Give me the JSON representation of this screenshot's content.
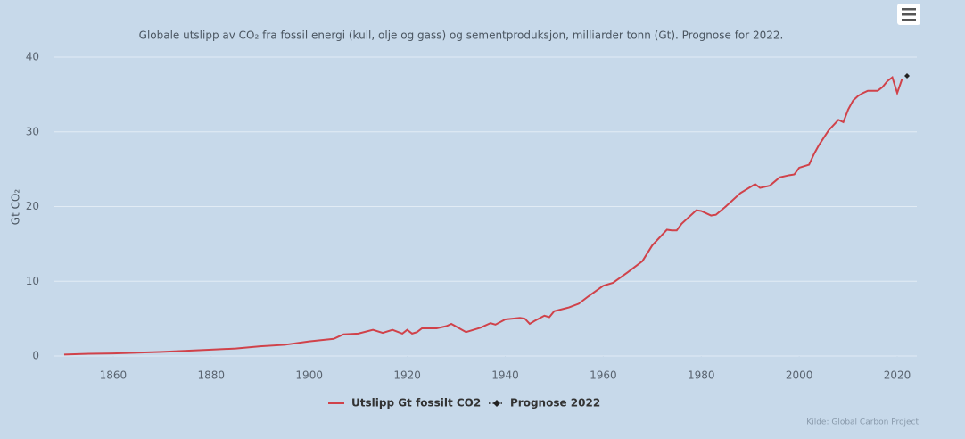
{
  "chart_data": {
    "type": "line",
    "title": "Globale utslipp av CO₂ fra fossil energi (kull, olje og gass) og sementproduksjon, milliarder tonn (Gt). Prognose for 2022.",
    "y_label": "Gt CO₂",
    "source": "Kilde: Global Carbon Project",
    "xlim": [
      1848,
      2024
    ],
    "xticks": [
      1860,
      1880,
      1900,
      1920,
      1940,
      1960,
      1980,
      2000,
      2020
    ],
    "ylim": [
      0,
      40
    ],
    "yticks": [
      0,
      10,
      20,
      30,
      40
    ],
    "grid": true,
    "series": [
      {
        "name": "Utslipp Gt fossilt CO2",
        "color": "#d0424a",
        "x": [
          1850,
          1855,
          1860,
          1865,
          1870,
          1875,
          1880,
          1885,
          1890,
          1895,
          1900,
          1905,
          1907,
          1910,
          1913,
          1915,
          1917,
          1919,
          1920,
          1921,
          1922,
          1923,
          1926,
          1928,
          1929,
          1932,
          1935,
          1937,
          1938,
          1940,
          1943,
          1944,
          1945,
          1946,
          1948,
          1949,
          1950,
          1953,
          1955,
          1957,
          1960,
          1962,
          1965,
          1968,
          1970,
          1973,
          1974,
          1975,
          1976,
          1979,
          1980,
          1982,
          1983,
          1985,
          1988,
          1991,
          1992,
          1994,
          1996,
          1998,
          1999,
          2000,
          2002,
          2003,
          2004,
          2006,
          2008,
          2009,
          2010,
          2011,
          2012,
          2013,
          2014,
          2015,
          2016,
          2017,
          2018,
          2019,
          2020,
          2021
        ],
        "values": [
          0.2,
          0.3,
          0.35,
          0.45,
          0.55,
          0.7,
          0.85,
          1.0,
          1.3,
          1.5,
          1.95,
          2.3,
          2.9,
          3.0,
          3.5,
          3.1,
          3.5,
          3.0,
          3.5,
          3.0,
          3.2,
          3.7,
          3.7,
          4.0,
          4.3,
          3.2,
          3.8,
          4.4,
          4.2,
          4.9,
          5.1,
          5.0,
          4.3,
          4.7,
          5.4,
          5.2,
          6.0,
          6.5,
          7.0,
          8.0,
          9.4,
          9.8,
          11.2,
          12.7,
          14.8,
          16.9,
          16.8,
          16.8,
          17.7,
          19.5,
          19.4,
          18.8,
          18.9,
          20.0,
          21.8,
          23.0,
          22.5,
          22.8,
          23.9,
          24.2,
          24.3,
          25.2,
          25.6,
          27.0,
          28.2,
          30.2,
          31.6,
          31.3,
          33.0,
          34.2,
          34.8,
          35.2,
          35.5,
          35.5,
          35.5,
          36.0,
          36.8,
          37.3,
          35.2,
          37.1
        ]
      },
      {
        "name": "Prognose 2022",
        "color": "#222222",
        "x": [
          2022
        ],
        "values": [
          37.5
        ]
      }
    ]
  }
}
